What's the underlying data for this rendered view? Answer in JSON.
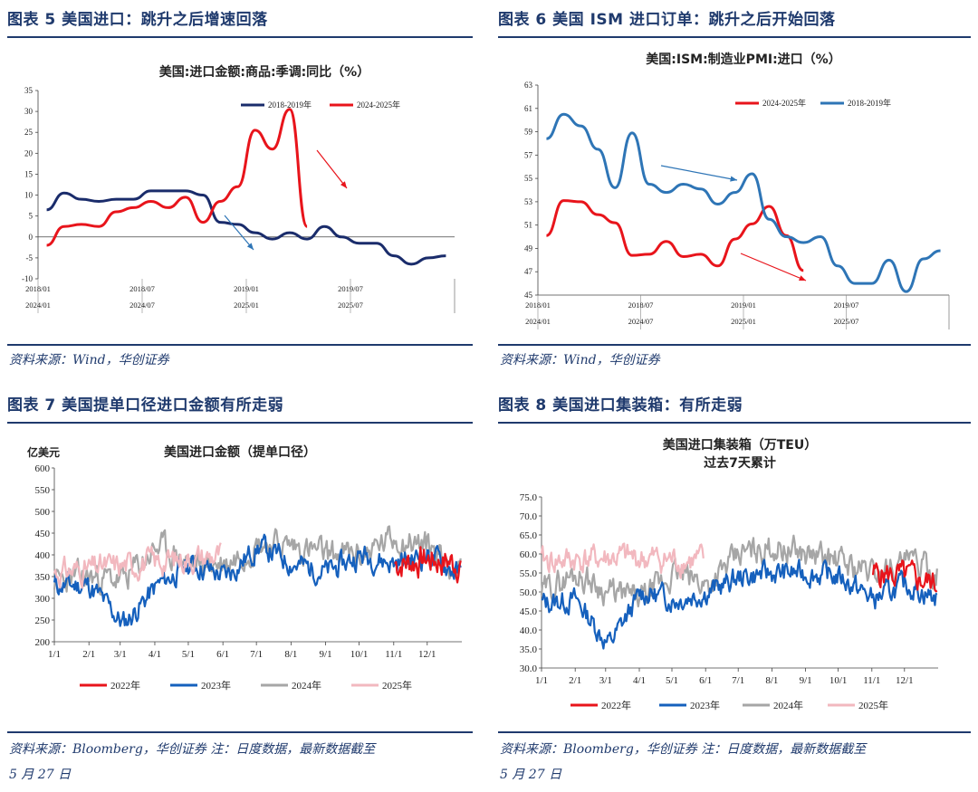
{
  "fig5": {
    "header": "图表 5 美国进口：跳升之后增速回落",
    "source": "资料来源：Wind，华创证券"
  },
  "fig6": {
    "header": "图表 6 美国 ISM 进口订单：跳升之后开始回落",
    "source": "资料来源：Wind，华创证券"
  },
  "fig7": {
    "header": "图表 7 美国提单口径进口金额有所走弱",
    "source_line1": "资料来源：Bloomberg，华创证券 注：日度数据，最新数据截至",
    "source_line2": "5 月 27 日"
  },
  "fig8": {
    "header": "图表 8 美国进口集装箱：有所走弱",
    "source_line1": "资料来源：Bloomberg，华创证券 注：日度数据，最新数据截至",
    "source_line2": "5 月 27 日"
  },
  "colors": {
    "navy": "#1a2c6b",
    "red": "#e8141b",
    "blue": "#2e75b6",
    "darkblue": "#1560bd",
    "gray": "#a6a6a6",
    "pink": "#f2b8bf"
  },
  "chart_data": [
    {
      "type": "line",
      "title": "美国:进口金额:商品:季调:同比（%）",
      "ylim": [
        -10,
        35
      ],
      "yticks": [
        -10,
        -5,
        0,
        5,
        10,
        15,
        20,
        25,
        30,
        35
      ],
      "xtick_labels_top": [
        "2018/01",
        "2018/07",
        "2019/01",
        "2019/07"
      ],
      "xtick_labels_bottom": [
        "2024/01",
        "2024/07",
        "2025/01",
        "2025/07"
      ],
      "legend": "top",
      "series": [
        {
          "name": "2018-2019年",
          "color": "#1a2c6b",
          "x": [
            "2018/01",
            "2018/02",
            "2018/03",
            "2018/04",
            "2018/05",
            "2018/06",
            "2018/07",
            "2018/08",
            "2018/09",
            "2018/10",
            "2018/11",
            "2018/12",
            "2019/01",
            "2019/02",
            "2019/03",
            "2019/04",
            "2019/05",
            "2019/06",
            "2019/07",
            "2019/08",
            "2019/09",
            "2019/10",
            "2019/11",
            "2019/12"
          ],
          "values": [
            6.5,
            10.5,
            9,
            8.5,
            9,
            9,
            11,
            11,
            11,
            10,
            3.5,
            3,
            1,
            -0.5,
            1,
            -0.5,
            2.5,
            0,
            -1.5,
            -1.5,
            -4.5,
            -6.5,
            -5,
            -4.5
          ]
        },
        {
          "name": "2024-2025年",
          "color": "#e8141b",
          "x": [
            "2024/01",
            "2024/02",
            "2024/03",
            "2024/04",
            "2024/05",
            "2024/06",
            "2024/07",
            "2024/08",
            "2024/09",
            "2024/10",
            "2024/11",
            "2024/12",
            "2025/01",
            "2025/02",
            "2025/03",
            "2025/04"
          ],
          "values": [
            -2,
            2.5,
            3,
            2.5,
            6,
            7,
            8.5,
            7,
            9.5,
            3.5,
            8.5,
            12,
            25.5,
            21,
            30.5,
            2.5
          ]
        }
      ]
    },
    {
      "type": "line",
      "title": "美国:ISM:制造业PMI:进口（%）",
      "ylim": [
        45,
        63
      ],
      "yticks": [
        45,
        47,
        49,
        51,
        53,
        55,
        57,
        59,
        61,
        63
      ],
      "xtick_labels_top": [
        "2018/01",
        "2018/07",
        "2019/01",
        "2019/07"
      ],
      "xtick_labels_bottom": [
        "2024/01",
        "2024/07",
        "2025/01",
        "2025/07"
      ],
      "legend": "top",
      "series": [
        {
          "name": "2024-2025年",
          "color": "#e8141b",
          "x": [
            "2024/01",
            "2024/02",
            "2024/03",
            "2024/04",
            "2024/05",
            "2024/06",
            "2024/07",
            "2024/08",
            "2024/09",
            "2024/10",
            "2024/11",
            "2024/12",
            "2025/01",
            "2025/02",
            "2025/03",
            "2025/04"
          ],
          "values": [
            50.1,
            53.1,
            53.0,
            51.9,
            51.2,
            48.4,
            48.5,
            49.6,
            48.3,
            48.5,
            47.5,
            49.8,
            51.1,
            52.6,
            50.1,
            47.1
          ]
        },
        {
          "name": "2018-2019年",
          "color": "#2e75b6",
          "x": [
            "2018/01",
            "2018/02",
            "2018/03",
            "2018/04",
            "2018/05",
            "2018/06",
            "2018/07",
            "2018/08",
            "2018/09",
            "2018/10",
            "2018/11",
            "2018/12",
            "2019/01",
            "2019/02",
            "2019/03",
            "2019/04",
            "2019/05",
            "2019/06",
            "2019/07",
            "2019/08",
            "2019/09",
            "2019/10",
            "2019/11",
            "2019/12"
          ],
          "values": [
            58.4,
            60.5,
            59.5,
            57.5,
            54.2,
            58.9,
            54.5,
            53.8,
            54.5,
            54.1,
            52.8,
            53.8,
            55.4,
            51.5,
            50,
            49.5,
            50,
            47.5,
            46,
            46,
            48,
            45.3,
            48.1,
            48.8
          ]
        }
      ]
    },
    {
      "type": "line",
      "title": "美国进口金额（提单口径）",
      "ylabel": "亿美元",
      "ylim": [
        200,
        600
      ],
      "yticks": [
        200,
        250,
        300,
        350,
        400,
        450,
        500,
        550,
        600
      ],
      "categories": [
        "1/1",
        "2/1",
        "3/1",
        "4/1",
        "5/1",
        "6/1",
        "7/1",
        "8/1",
        "9/1",
        "10/1",
        "11/1",
        "12/1"
      ],
      "legend": "bottom",
      "series": [
        {
          "name": "2022年",
          "color": "#e8141b"
        },
        {
          "name": "2023年",
          "color": "#1560bd"
        },
        {
          "name": "2024年",
          "color": "#a6a6a6"
        },
        {
          "name": "2025年",
          "color": "#f2b8bf"
        }
      ]
    },
    {
      "type": "line",
      "title": "美国进口集装箱（万TEU）",
      "subtitle": "过去7天累计",
      "ylim": [
        30,
        75
      ],
      "yticks": [
        30.0,
        35.0,
        40.0,
        45.0,
        50.0,
        55.0,
        60.0,
        65.0,
        70.0,
        75.0
      ],
      "categories": [
        "1/1",
        "2/1",
        "3/1",
        "4/1",
        "5/1",
        "6/1",
        "7/1",
        "8/1",
        "9/1",
        "10/1",
        "11/1",
        "12/1"
      ],
      "legend": "bottom",
      "series": [
        {
          "name": "2022年",
          "color": "#e8141b"
        },
        {
          "name": "2023年",
          "color": "#1560bd"
        },
        {
          "name": "2024年",
          "color": "#a6a6a6"
        },
        {
          "name": "2025年",
          "color": "#f2b8bf"
        }
      ]
    }
  ]
}
